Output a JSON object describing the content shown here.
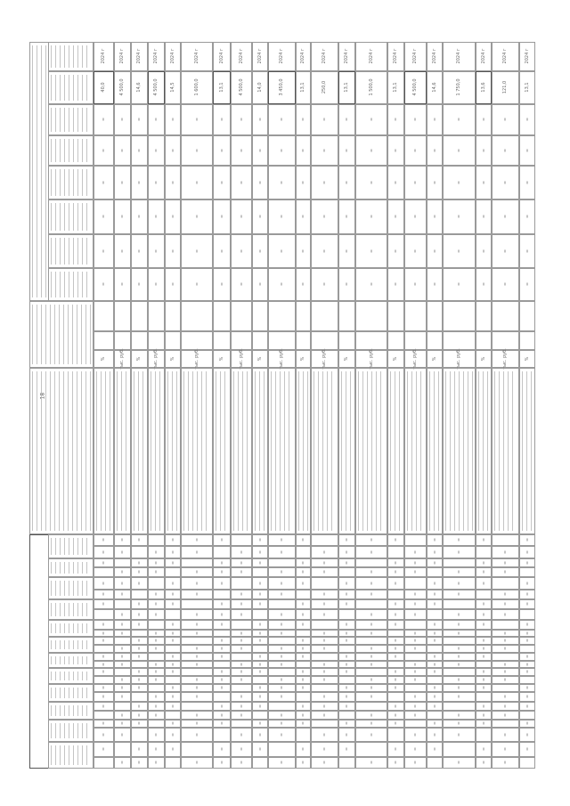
{
  "page_number": "18",
  "table": {
    "target_years": [
      "2024 г",
      "2024 г",
      "2024 г",
      "2024 г",
      "2024 г",
      "2024 г",
      "2024 г",
      "2024 г",
      "2024 г",
      "2024 г",
      "2024 г",
      "2024 г",
      "2024 г",
      "2024 г",
      "2024 г",
      "2024 г",
      "2024 г",
      "2024 г",
      "2024 г",
      "2024 г",
      "2024 г"
    ],
    "target_values": [
      "40,0",
      "4 500,0",
      "14,6",
      "4 500,0",
      "14,5",
      "1 600,0",
      "13,1",
      "4 500,0",
      "14,0",
      "3 450,0",
      "13,1",
      "250,0",
      "13,1",
      "1 500,0",
      "13,1",
      "4 500,0",
      "14,6",
      "1 750,0",
      "13,6",
      "121,0",
      "13,1"
    ],
    "units": [
      "%",
      "тыс. руб.",
      "%",
      "тыс. руб.",
      "%",
      "тыс. руб.",
      "%",
      "тыс. руб.",
      "%",
      "тыс. руб.",
      "%",
      "тыс. руб.",
      "%",
      "тыс. руб.",
      "%",
      "тыс. руб.",
      "%",
      "тыс. руб.",
      "%",
      "тыс. руб.",
      "%"
    ]
  },
  "colors": {
    "grid": "#9a9a9a",
    "text": "#666666"
  }
}
